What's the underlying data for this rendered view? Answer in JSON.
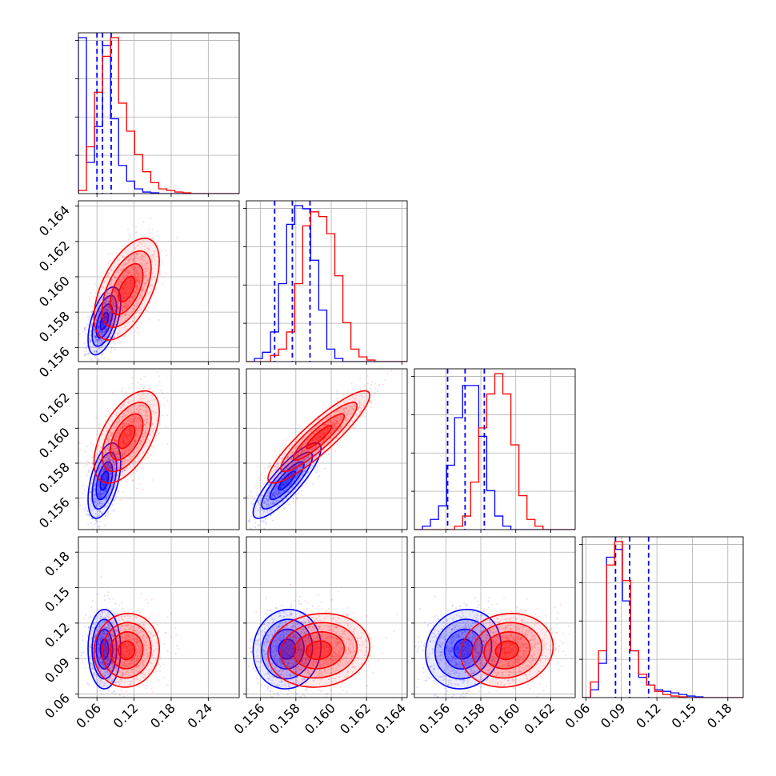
{
  "chart_data": {
    "type": "scatter",
    "subtype": "corner-plot",
    "grid": true,
    "colors": {
      "series_a": "#0000ff",
      "series_b": "#ff0000"
    },
    "parameters": [
      {
        "ticks": [
          0.06,
          0.12,
          0.18,
          0.24
        ],
        "tick_labels": [
          "0.06",
          "0.12",
          "0.18",
          "0.24"
        ],
        "range": [
          0.03,
          0.29
        ]
      },
      {
        "ticks": [
          0.156,
          0.158,
          0.16,
          0.162,
          0.164
        ],
        "tick_labels": [
          "0.156",
          "0.158",
          "0.160",
          "0.162",
          "0.164"
        ],
        "range": [
          0.1552,
          0.1643
        ]
      },
      {
        "ticks": [
          0.156,
          0.158,
          0.16,
          0.162
        ],
        "tick_labels": [
          "0.156",
          "0.158",
          "0.160",
          "0.162"
        ],
        "range": [
          0.1542,
          0.1634
        ]
      },
      {
        "ticks": [
          0.06,
          0.09,
          0.12,
          0.15,
          0.18
        ],
        "tick_labels": [
          "0.06",
          "0.09",
          "0.12",
          "0.15",
          "0.18"
        ],
        "range": [
          0.057,
          0.193
        ]
      }
    ],
    "series": [
      {
        "color": "#0000ff",
        "means": [
          0.072,
          0.1575,
          0.157,
          0.098
        ],
        "sds": [
          0.011,
          0.0008,
          0.0009,
          0.014
        ],
        "corr": [
          [
            1,
            0.55,
            0.5,
            0.0
          ],
          [
            0.55,
            1,
            0.85,
            0.05
          ],
          [
            0.5,
            0.85,
            1,
            0.1
          ],
          [
            0.0,
            0.05,
            0.1,
            1
          ]
        ],
        "quantiles": [
          [
            0.06,
            0.069,
            0.083
          ],
          [
            0.1568,
            0.1578,
            0.1588
          ],
          [
            0.1561,
            0.1571,
            0.1582
          ],
          [
            0.085,
            0.097,
            0.113
          ]
        ],
        "hist": [
          {
            "edges_range": [
              0.03,
              0.29
            ],
            "counts": [
              1.0,
              0.2,
              0.43,
              0.95,
              0.48,
              0.18,
              0.08,
              0.03,
              0.01,
              0.005,
              0.0,
              0.0,
              0.0,
              0.0,
              0.0,
              0.0,
              0.0,
              0.0,
              0.0,
              0.0
            ]
          },
          {
            "edges_range": [
              0.1552,
              0.1643
            ],
            "counts": [
              0.0,
              0.02,
              0.06,
              0.19,
              0.5,
              0.88,
              1.0,
              0.98,
              0.65,
              0.33,
              0.08,
              0.02,
              0.0,
              0.0,
              0.0,
              0.0,
              0.0,
              0.0,
              0.0,
              0.0
            ]
          },
          {
            "edges_range": [
              0.1542,
              0.1634
            ],
            "counts": [
              0.0,
              0.02,
              0.06,
              0.14,
              0.38,
              0.66,
              0.85,
              0.85,
              0.55,
              0.23,
              0.08,
              0.02,
              0.0,
              0.0,
              0.0,
              0.0,
              0.0,
              0.0,
              0.0,
              0.0
            ]
          },
          {
            "edges_range": [
              0.057,
              0.193
            ],
            "counts": [
              0.0,
              0.05,
              0.22,
              0.9,
              0.95,
              0.62,
              0.3,
              0.13,
              0.08,
              0.05,
              0.04,
              0.03,
              0.02,
              0.01,
              0.005,
              0.0,
              0.0,
              0.0,
              0.0,
              0.0
            ]
          }
        ]
      },
      {
        "color": "#ff0000",
        "means": [
          0.108,
          0.1593,
          0.1595,
          0.097
        ],
        "sds": [
          0.022,
          0.0012,
          0.0011,
          0.013
        ],
        "corr": [
          [
            1,
            0.55,
            0.55,
            0.05
          ],
          [
            0.55,
            1,
            0.9,
            0.1
          ],
          [
            0.55,
            0.9,
            1,
            0.1
          ],
          [
            0.05,
            0.1,
            0.1,
            1
          ]
        ],
        "quantiles": [
          [],
          [],
          [],
          []
        ],
        "hist": [
          {
            "edges_range": [
              0.03,
              0.29
            ],
            "counts": [
              0.02,
              0.3,
              0.65,
              0.88,
              1.0,
              0.58,
              0.4,
              0.25,
              0.14,
              0.07,
              0.03,
              0.02,
              0.01,
              0.005,
              0.0,
              0.0,
              0.0,
              0.0,
              0.0,
              0.0
            ]
          },
          {
            "edges_range": [
              0.1552,
              0.1643
            ],
            "counts": [
              0.0,
              0.0,
              0.0,
              0.04,
              0.08,
              0.19,
              0.5,
              0.87,
              0.96,
              0.93,
              0.82,
              0.55,
              0.25,
              0.08,
              0.03,
              0.01,
              0.0,
              0.0,
              0.0,
              0.0
            ]
          },
          {
            "edges_range": [
              0.1542,
              0.1634
            ],
            "counts": [
              0.0,
              0.0,
              0.0,
              0.0,
              0.0,
              0.02,
              0.08,
              0.28,
              0.6,
              0.8,
              0.92,
              0.8,
              0.5,
              0.2,
              0.06,
              0.02,
              0.0,
              0.0,
              0.0,
              0.0
            ]
          },
          {
            "edges_range": [
              0.057,
              0.193
            ],
            "counts": [
              0.0,
              0.1,
              0.3,
              0.85,
              1.0,
              0.75,
              0.3,
              0.15,
              0.08,
              0.04,
              0.02,
              0.01,
              0.005,
              0.0,
              0.0,
              0.0,
              0.0,
              0.0,
              0.0,
              0.0
            ]
          }
        ]
      }
    ]
  }
}
